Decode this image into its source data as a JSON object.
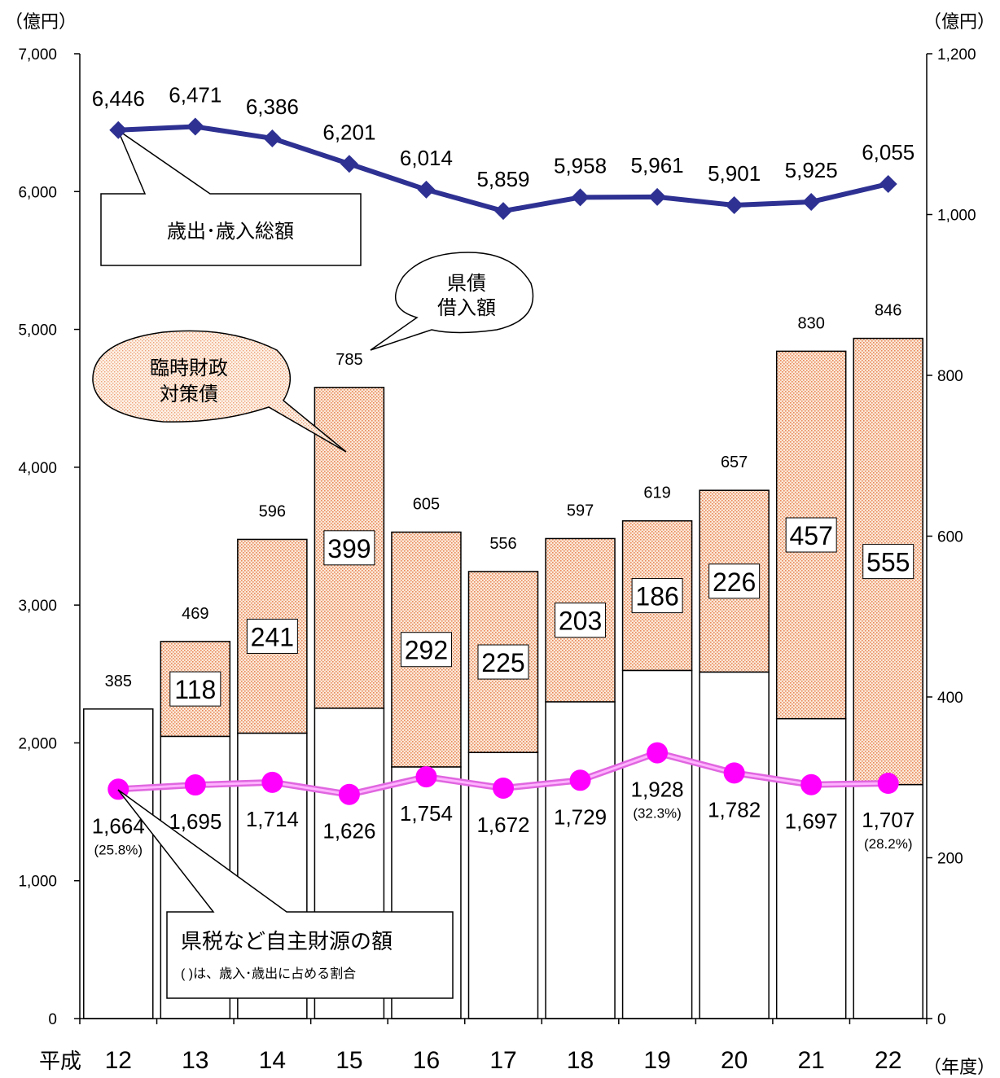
{
  "chart_data": {
    "type": "bar",
    "left_axis": {
      "unit": "（億円）",
      "range": [
        0,
        7000
      ],
      "ticks": [
        "0",
        "1,000",
        "2,000",
        "3,000",
        "4,000",
        "5,000",
        "6,000",
        "7,000"
      ]
    },
    "right_axis": {
      "unit": "（億円）",
      "range": [
        0,
        1200
      ],
      "ticks": [
        "0",
        "200",
        "400",
        "600",
        "800",
        "1,000",
        "1,200"
      ]
    },
    "x_prefix": "平成",
    "x_unit": "（年度）",
    "categories": [
      "12",
      "13",
      "14",
      "15",
      "16",
      "17",
      "18",
      "19",
      "20",
      "21",
      "22"
    ],
    "series": [
      {
        "name": "歳出･歳入総額",
        "type": "line",
        "axis": "left",
        "color": "#2e3192",
        "values": [
          6446,
          6471,
          6386,
          6201,
          6014,
          5859,
          5958,
          5961,
          5901,
          5925,
          6055
        ],
        "labels": [
          "6,446",
          "6,471",
          "6,386",
          "6,201",
          "6,014",
          "5,859",
          "5,958",
          "5,961",
          "5,901",
          "5,925",
          "6,055"
        ]
      },
      {
        "name": "県債借入額",
        "type": "bar",
        "axis": "right",
        "color": "#ffffff",
        "values": [
          385,
          469,
          596,
          785,
          605,
          556,
          597,
          619,
          657,
          830,
          846
        ],
        "labels": [
          "385",
          "469",
          "596",
          "785",
          "605",
          "556",
          "597",
          "619",
          "657",
          "830",
          "846"
        ]
      },
      {
        "name": "臨時財政対策債",
        "type": "bar-segment",
        "axis": "right",
        "color": "#f4a460",
        "values": [
          0,
          118,
          241,
          399,
          292,
          225,
          203,
          186,
          226,
          457,
          555
        ],
        "labels": [
          "",
          "118",
          "241",
          "399",
          "292",
          "225",
          "203",
          "186",
          "226",
          "457",
          "555"
        ]
      },
      {
        "name": "県税など自主財源の額",
        "type": "line",
        "axis": "left",
        "color": "#ff00ff",
        "values": [
          1664,
          1695,
          1714,
          1626,
          1754,
          1672,
          1729,
          1928,
          1782,
          1697,
          1707
        ],
        "labels": [
          "1,664",
          "1,695",
          "1,714",
          "1,626",
          "1,754",
          "1,672",
          "1,729",
          "1,928",
          "1,782",
          "1,697",
          "1,707"
        ],
        "percent_labels": [
          "(25.8%)",
          "",
          "",
          "",
          "",
          "",
          "",
          "(32.3%)",
          "",
          "",
          "(28.2%)"
        ]
      }
    ],
    "callouts": {
      "total": "歳出･歳入総額",
      "bond_line1": "県債",
      "bond_line2": "借入額",
      "rinji_line1": "臨時財政",
      "rinji_line2": "対策債",
      "jishu_title": "県税など自主財源の額",
      "jishu_note": "(   )は、歳入･歳出に占める割合"
    }
  }
}
